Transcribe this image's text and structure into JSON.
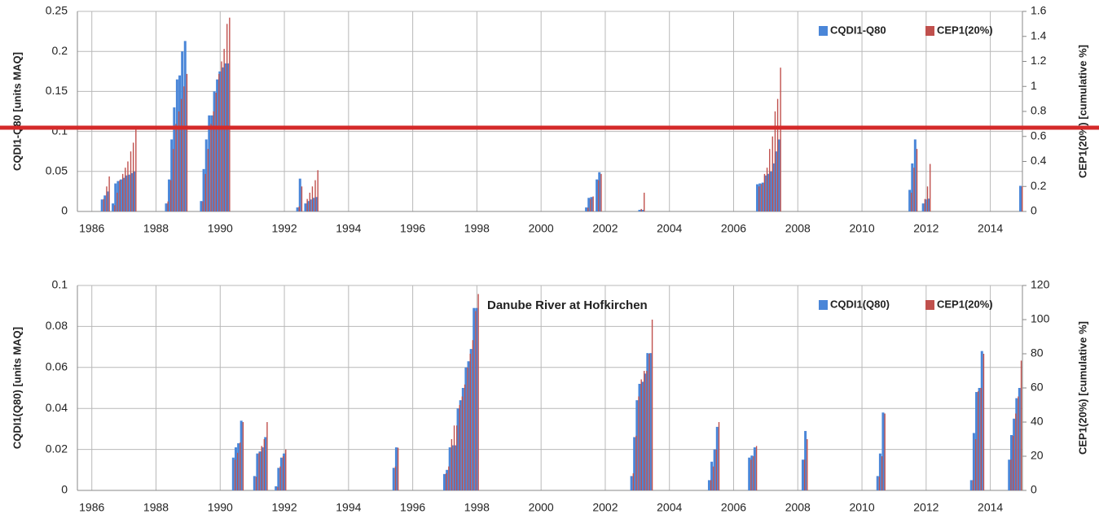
{
  "chart_data": [
    {
      "type": "bar",
      "x_type": "numeric",
      "y_label": "CQDI1-Q80 [units MAQ]",
      "y2_label": "CEP1(20%) [cumulative %]",
      "xlim": [
        1985.55,
        2015.0
      ],
      "xticks": [
        1986,
        1988,
        1990,
        1992,
        1994,
        1996,
        1998,
        2000,
        2002,
        2004,
        2006,
        2008,
        2010,
        2012,
        2014
      ],
      "ylim": [
        0,
        0.25
      ],
      "yticks": [
        0,
        0.05,
        0.1,
        0.15,
        0.2,
        0.25
      ],
      "y2lim": [
        0,
        1.6
      ],
      "y2ticks": [
        0,
        0.2,
        0.4,
        0.6,
        0.8,
        1,
        1.2,
        1.4,
        1.6
      ],
      "grid": true,
      "legend": "upper right",
      "x": [
        1986.33,
        1986.42,
        1986.5,
        1986.67,
        1986.75,
        1986.83,
        1986.92,
        1987.0,
        1987.08,
        1987.17,
        1987.25,
        1987.33,
        1988.33,
        1988.42,
        1988.5,
        1988.58,
        1988.67,
        1988.75,
        1988.83,
        1988.92,
        1989.42,
        1989.5,
        1989.58,
        1989.67,
        1989.75,
        1989.83,
        1989.92,
        1990.0,
        1990.08,
        1990.17,
        1990.25,
        1992.42,
        1992.5,
        1992.67,
        1992.75,
        1992.83,
        1992.92,
        1993.0,
        2001.42,
        2001.5,
        2001.58,
        2001.75,
        2001.83,
        2003.08,
        2003.17,
        2006.75,
        2006.83,
        2006.92,
        2007.0,
        2007.08,
        2007.17,
        2007.25,
        2007.33,
        2007.42,
        2011.5,
        2011.58,
        2011.67,
        2011.92,
        2012.0,
        2012.08,
        2014.95
      ],
      "series": [
        {
          "name": "CQDI1-Q80",
          "color": "#4a86d8",
          "axis": "y",
          "values": [
            0.015,
            0.02,
            0.025,
            0.01,
            0.035,
            0.038,
            0.04,
            0.042,
            0.045,
            0.046,
            0.048,
            0.05,
            0.01,
            0.04,
            0.09,
            0.13,
            0.165,
            0.17,
            0.2,
            0.213,
            0.013,
            0.053,
            0.09,
            0.12,
            0.12,
            0.15,
            0.165,
            0.175,
            0.18,
            0.185,
            0.185,
            0.005,
            0.041,
            0.01,
            0.013,
            0.015,
            0.017,
            0.018,
            0.005,
            0.017,
            0.018,
            0.04,
            0.049,
            0.002,
            0.002,
            0.034,
            0.035,
            0.036,
            0.045,
            0.047,
            0.05,
            0.06,
            0.075,
            0.09,
            0.027,
            0.06,
            0.09,
            0.01,
            0.015,
            0.016,
            0.032
          ]
        },
        {
          "name": "CEP1(20%)",
          "color": "#c0504d",
          "axis": "y2",
          "values": [
            0.1,
            0.2,
            0.28,
            0.05,
            0.15,
            0.25,
            0.3,
            0.35,
            0.4,
            0.48,
            0.55,
            0.68,
            0.08,
            0.25,
            0.5,
            0.7,
            0.8,
            0.9,
            1.0,
            1.1,
            0.08,
            0.3,
            0.5,
            0.7,
            0.8,
            0.95,
            1.1,
            1.2,
            1.3,
            1.5,
            1.55,
            0.04,
            0.2,
            0.1,
            0.15,
            0.2,
            0.25,
            0.33,
            0.03,
            0.1,
            0.12,
            0.25,
            0.3,
            0.02,
            0.15,
            0.2,
            0.22,
            0.3,
            0.35,
            0.5,
            0.6,
            0.8,
            0.9,
            1.15,
            0.15,
            0.35,
            0.5,
            0.1,
            0.2,
            0.38,
            0.2
          ]
        }
      ]
    },
    {
      "type": "bar",
      "x_type": "numeric",
      "title": "Danube River at Hofkirchen",
      "y_label": "CQDI1(Q80) [units MAQ]",
      "y2_label": "CEP1(20%) [cumulative %]",
      "xlim": [
        1985.55,
        2015.0
      ],
      "xticks": [
        1986,
        1988,
        1990,
        1992,
        1994,
        1996,
        1998,
        2000,
        2002,
        2004,
        2006,
        2008,
        2010,
        2012,
        2014
      ],
      "ylim": [
        0,
        0.1
      ],
      "yticks": [
        0,
        0.02,
        0.04,
        0.06,
        0.08,
        0.1
      ],
      "y2lim": [
        0,
        120
      ],
      "y2ticks": [
        0,
        20,
        40,
        60,
        80,
        100,
        120
      ],
      "grid": true,
      "legend": "upper right",
      "x": [
        1990.42,
        1990.5,
        1990.58,
        1990.67,
        1991.08,
        1991.17,
        1991.25,
        1991.33,
        1991.42,
        1991.75,
        1991.83,
        1991.92,
        1992.0,
        1995.42,
        1995.5,
        1997.0,
        1997.08,
        1997.17,
        1997.25,
        1997.33,
        1997.42,
        1997.5,
        1997.58,
        1997.67,
        1997.75,
        1997.83,
        1997.92,
        1998.0,
        2002.83,
        2002.92,
        2003.0,
        2003.08,
        2003.17,
        2003.25,
        2003.33,
        2003.42,
        2005.25,
        2005.33,
        2005.42,
        2005.5,
        2006.5,
        2006.58,
        2006.67,
        2008.17,
        2008.25,
        2010.5,
        2010.58,
        2010.67,
        2013.42,
        2013.5,
        2013.58,
        2013.67,
        2013.75,
        2014.6,
        2014.67,
        2014.75,
        2014.83,
        2014.92
      ],
      "series": [
        {
          "name": "CQDI1(Q80)",
          "color": "#4a86d8",
          "axis": "y",
          "values": [
            0.016,
            0.021,
            0.023,
            0.034,
            0.007,
            0.018,
            0.019,
            0.021,
            0.026,
            0.002,
            0.011,
            0.016,
            0.018,
            0.011,
            0.021,
            0.008,
            0.01,
            0.021,
            0.022,
            0.022,
            0.04,
            0.044,
            0.05,
            0.06,
            0.063,
            0.069,
            0.089,
            0.089,
            0.007,
            0.026,
            0.044,
            0.052,
            0.053,
            0.057,
            0.067,
            0.067,
            0.005,
            0.014,
            0.02,
            0.031,
            0.016,
            0.017,
            0.021,
            0.015,
            0.029,
            0.007,
            0.018,
            0.038,
            0.005,
            0.028,
            0.048,
            0.05,
            0.068,
            0.015,
            0.027,
            0.035,
            0.045,
            0.05
          ]
        },
        {
          "name": "CEP1(20%)",
          "color": "#c0504d",
          "axis": "y2",
          "values": [
            18,
            22,
            28,
            40,
            8,
            22,
            26,
            30,
            40,
            2,
            14,
            20,
            24,
            14,
            25,
            10,
            14,
            30,
            38,
            38,
            50,
            55,
            62,
            72,
            80,
            88,
            105,
            115,
            10,
            32,
            55,
            65,
            70,
            70,
            80,
            100,
            6,
            14,
            24,
            40,
            18,
            20,
            26,
            18,
            30,
            8,
            20,
            45,
            6,
            30,
            58,
            60,
            80,
            18,
            32,
            45,
            55,
            76
          ]
        }
      ]
    }
  ]
}
